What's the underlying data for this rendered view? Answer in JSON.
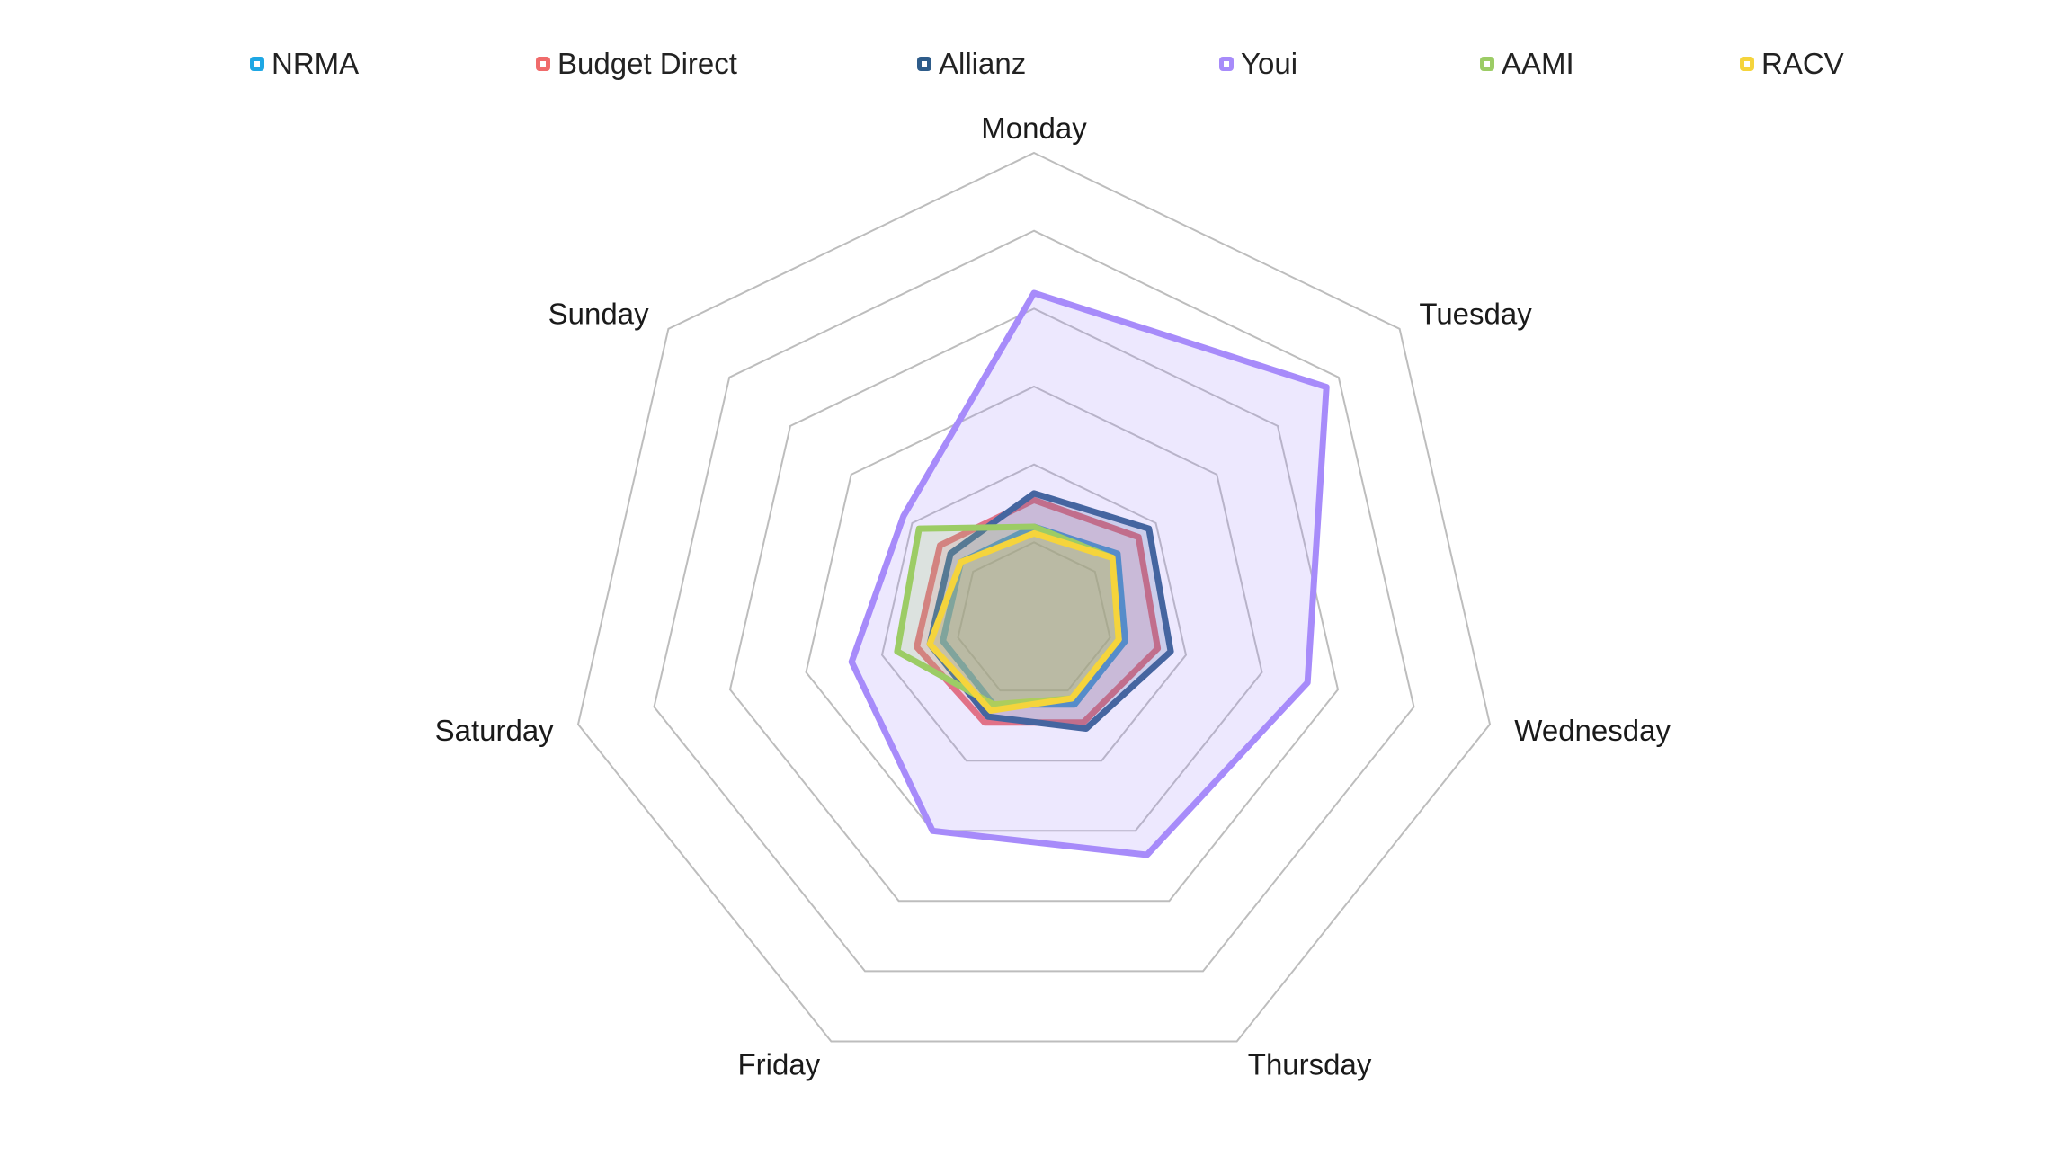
{
  "chart_data": {
    "type": "radar",
    "title": "",
    "axes": [
      "Monday",
      "Tuesday",
      "Wednesday",
      "Thursday",
      "Friday",
      "Saturday",
      "Sunday"
    ],
    "rmax": 7,
    "rings": 6,
    "series": [
      {
        "name": "NRMA",
        "color": "#1ea7e4",
        "values": [
          1.4,
          1.6,
          1.4,
          1.4,
          1.4,
          1.4,
          1.4
        ]
      },
      {
        "name": "Budget Direct",
        "color": "#f06b6b",
        "values": [
          1.8,
          2.0,
          1.9,
          1.7,
          1.7,
          1.8,
          1.8
        ]
      },
      {
        "name": "Allianz",
        "color": "#2e5c8a",
        "values": [
          1.9,
          2.2,
          2.1,
          1.8,
          1.6,
          1.6,
          1.6
        ]
      },
      {
        "name": "Youi",
        "color": "#a78bfa",
        "values": [
          4.9,
          5.6,
          4.2,
          3.9,
          3.5,
          2.8,
          2.5
        ]
      },
      {
        "name": "AAMI",
        "color": "#9ccc65",
        "values": [
          1.4,
          1.5,
          1.3,
          1.3,
          1.4,
          2.1,
          2.2
        ]
      },
      {
        "name": "RACV",
        "color": "#f5d43c",
        "values": [
          1.3,
          1.5,
          1.3,
          1.3,
          1.5,
          1.6,
          1.4
        ]
      }
    ]
  }
}
